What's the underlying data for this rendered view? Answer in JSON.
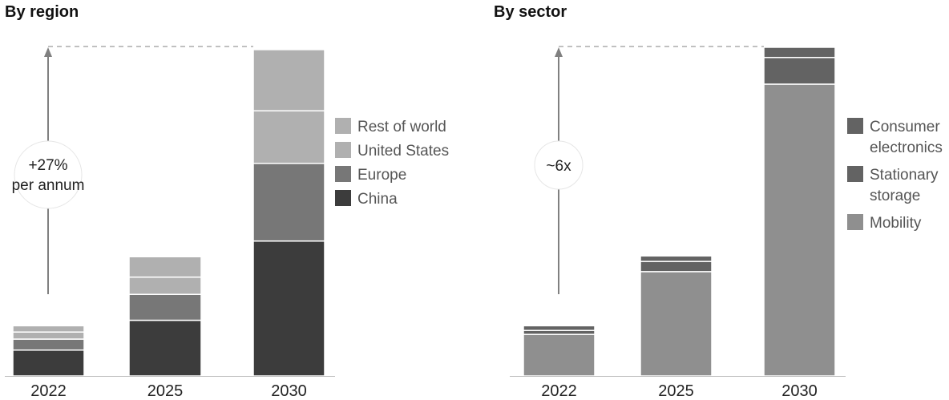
{
  "chart_data": [
    {
      "type": "bar",
      "stacked": true,
      "title": "By region",
      "categories": [
        "2022",
        "2025",
        "2030"
      ],
      "ylim": [
        0,
        4.2
      ],
      "series": [
        {
          "name": "China",
          "color": "#3c3c3c",
          "values": [
            0.33,
            0.71,
            1.72
          ]
        },
        {
          "name": "Europe",
          "color": "#777777",
          "values": [
            0.14,
            0.33,
            0.99
          ]
        },
        {
          "name": "United States",
          "color": "#b0b0b0",
          "values": [
            0.09,
            0.22,
            0.67
          ]
        },
        {
          "name": "Rest of world",
          "color": "#b0b0b0",
          "values": [
            0.08,
            0.26,
            0.78
          ]
        }
      ],
      "annotation": {
        "line1": "+27%",
        "line2": "per annum"
      },
      "grid": false,
      "legend": "right"
    },
    {
      "type": "bar",
      "stacked": true,
      "title": "By sector",
      "categories": [
        "2022",
        "2025",
        "2030"
      ],
      "ylim": [
        0,
        4.2
      ],
      "series": [
        {
          "name": "Mobility",
          "color": "#8f8f8f",
          "values": [
            0.53,
            1.33,
            3.72
          ]
        },
        {
          "name": "Stationary storage",
          "color": "#636363",
          "values": [
            0.05,
            0.13,
            0.34
          ]
        },
        {
          "name": "Consumer electronics",
          "color": "#636363",
          "values": [
            0.06,
            0.07,
            0.13
          ]
        }
      ],
      "legend_lines": [
        [
          "Consumer",
          "electronics"
        ],
        [
          "Stationary",
          "storage"
        ],
        [
          "Mobility"
        ]
      ],
      "annotation": {
        "line1": "~6x"
      },
      "grid": false,
      "legend": "right"
    }
  ]
}
